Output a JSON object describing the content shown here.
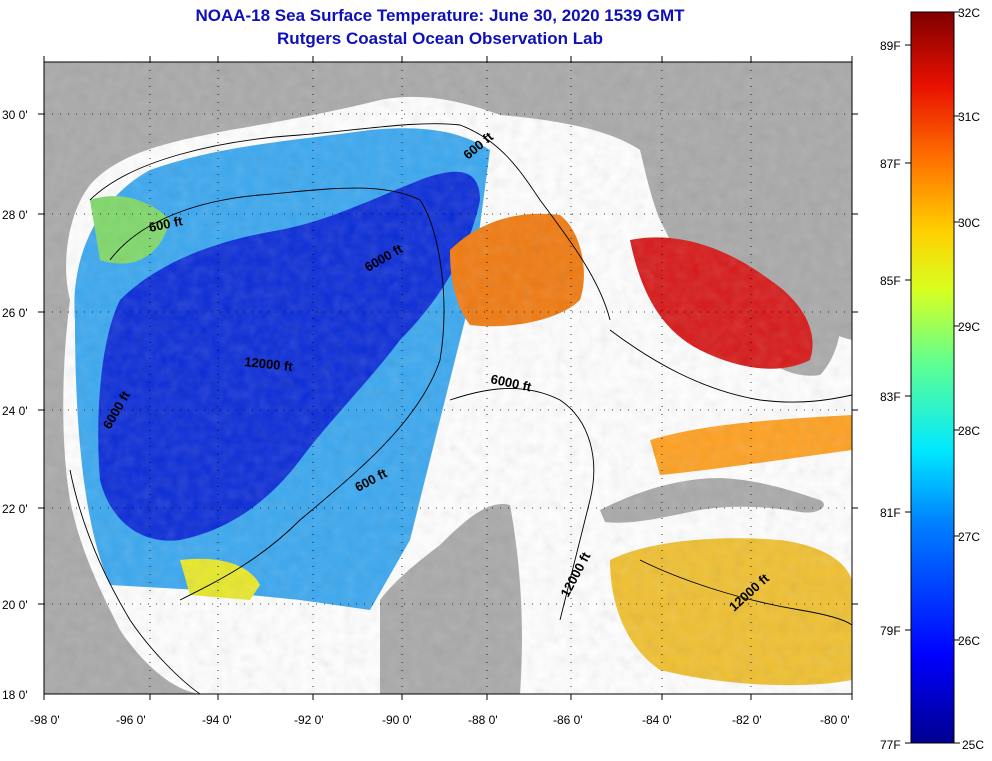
{
  "title": "NOAA-18 Sea Surface Temperature:  June 30, 2020 1539 GMT",
  "subtitle": "Rutgers Coastal Ocean Observation Lab",
  "lat_labels": [
    "30 0'",
    "28 0'",
    "26 0'",
    "24 0'",
    "22 0'",
    "20 0'",
    "18 0'"
  ],
  "lon_labels": [
    "-98 0'",
    "-96 0'",
    "-94 0'",
    "-92 0'",
    "-90 0'",
    "-88 0'",
    "-86 0'",
    "-84 0'",
    "-82 0'",
    "-80 0'"
  ],
  "contour_labels": [
    "600 ft",
    "6000 ft",
    "12000 ft",
    "6000 ft",
    "600 ft",
    "6000 ft",
    "600 ft",
    "12000 ft",
    "12000 ft"
  ],
  "colorbar": {
    "celsius": [
      "32C",
      "31C",
      "30C",
      "29C",
      "28C",
      "27C",
      "26C",
      "25C"
    ],
    "fahrenheit": [
      "89F",
      "87F",
      "85F",
      "83F",
      "81F",
      "79F",
      "77F"
    ]
  },
  "colors": {
    "land": "#a9a9a9",
    "cloud": "#ffffff",
    "title": "#1010b8"
  }
}
